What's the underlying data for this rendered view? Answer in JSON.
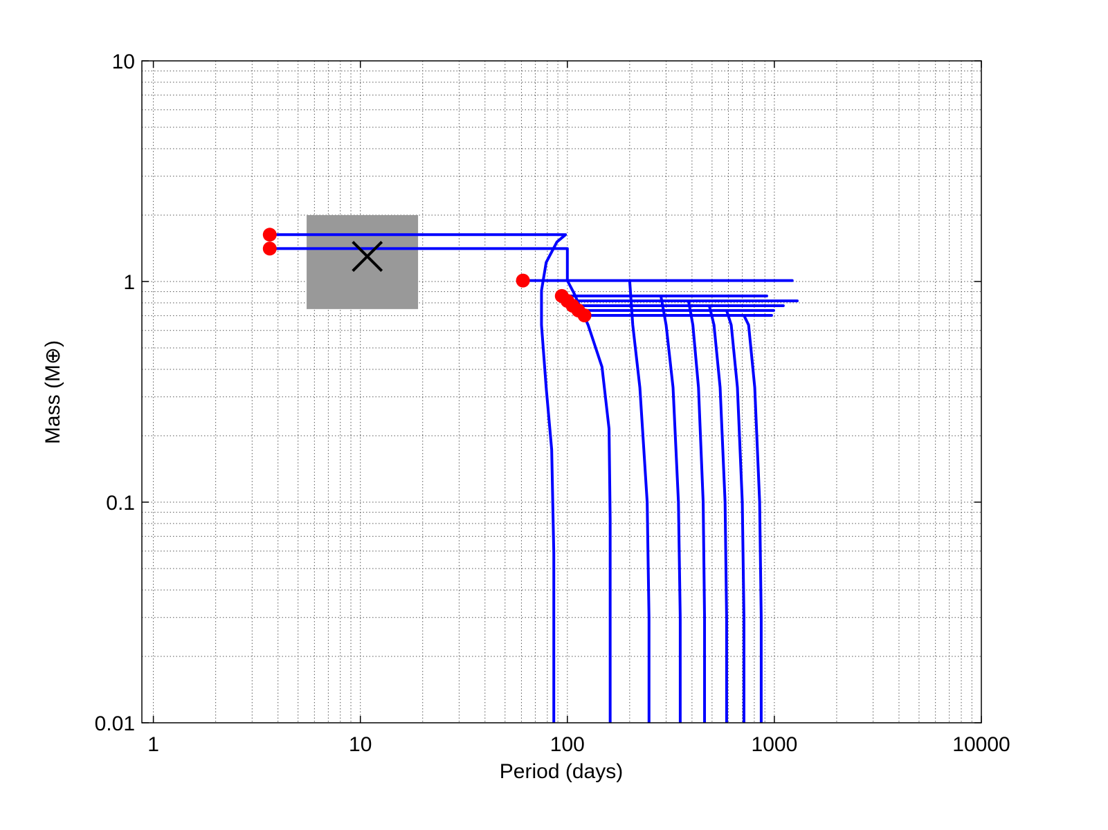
{
  "chart_data": {
    "type": "line",
    "xlabel": "Period (days)",
    "ylabel": "Mass (M⊕)",
    "xscale": "log",
    "yscale": "log",
    "xlim": [
      0.88,
      10000
    ],
    "ylim": [
      0.01,
      10
    ],
    "xticks": [
      1,
      10,
      100,
      1000,
      10000
    ],
    "yticks": [
      0.01,
      0.1,
      1,
      10
    ],
    "xminorticks": [
      2,
      3,
      4,
      5,
      6,
      7,
      8,
      9,
      20,
      30,
      40,
      50,
      60,
      70,
      80,
      90,
      200,
      300,
      400,
      500,
      600,
      700,
      800,
      900,
      2000,
      3000,
      4000,
      5000,
      6000,
      7000,
      8000,
      9000
    ],
    "yminorticks": [
      0.02,
      0.03,
      0.04,
      0.05,
      0.06,
      0.07,
      0.08,
      0.09,
      0.2,
      0.3,
      0.4,
      0.5,
      0.6,
      0.7,
      0.8,
      0.9,
      2,
      3,
      4,
      5,
      6,
      7,
      8,
      9
    ],
    "grid": true,
    "line_color": "#0000ff",
    "start_marker_color": "#ff0000",
    "region": {
      "x": [
        5.5,
        19
      ],
      "y": [
        0.75,
        2.0
      ],
      "color": "#999999"
    },
    "marker": {
      "x": 10.8,
      "y": 1.3,
      "color": "#000000"
    },
    "series": [
      {
        "x": [
          3.65,
          98,
          89,
          79,
          75,
          75,
          79,
          84,
          86,
          86
        ],
        "y": [
          1.63,
          1.63,
          1.51,
          1.22,
          0.91,
          0.635,
          0.331,
          0.173,
          0.0586,
          0.01
        ]
      },
      {
        "x": [
          3.65,
          100,
          100,
          108,
          126,
          147,
          159,
          161,
          161
        ],
        "y": [
          1.41,
          1.41,
          1.01,
          0.88,
          0.635,
          0.41,
          0.215,
          0.084,
          0.01
        ]
      },
      {
        "x": [
          61,
          1220,
          200,
          207,
          224,
          243,
          248,
          248
        ],
        "y": [
          1.01,
          1.01,
          1.01,
          0.635,
          0.331,
          0.1,
          0.03,
          0.01
        ]
      },
      {
        "x": [
          94,
          919,
          283,
          300,
          324,
          344,
          351,
          351
        ],
        "y": [
          0.86,
          0.86,
          0.86,
          0.635,
          0.331,
          0.1,
          0.03,
          0.01
        ]
      },
      {
        "x": [
          100,
          1290,
          385,
          404,
          430,
          453,
          460,
          460
        ],
        "y": [
          0.817,
          0.817,
          0.817,
          0.635,
          0.331,
          0.1,
          0.03,
          0.01
        ]
      },
      {
        "x": [
          106,
          1105,
          485,
          511,
          547,
          578,
          588,
          588
        ],
        "y": [
          0.777,
          0.777,
          0.777,
          0.635,
          0.331,
          0.1,
          0.03,
          0.01
        ]
      },
      {
        "x": [
          113,
          993,
          588,
          619,
          663,
          700,
          713,
          713
        ],
        "y": [
          0.739,
          0.739,
          0.739,
          0.635,
          0.331,
          0.1,
          0.03,
          0.01
        ]
      },
      {
        "x": [
          121,
          970,
          713,
          751,
          804,
          849,
          864,
          864
        ],
        "y": [
          0.702,
          0.702,
          0.702,
          0.635,
          0.331,
          0.1,
          0.03,
          0.01
        ]
      }
    ]
  }
}
